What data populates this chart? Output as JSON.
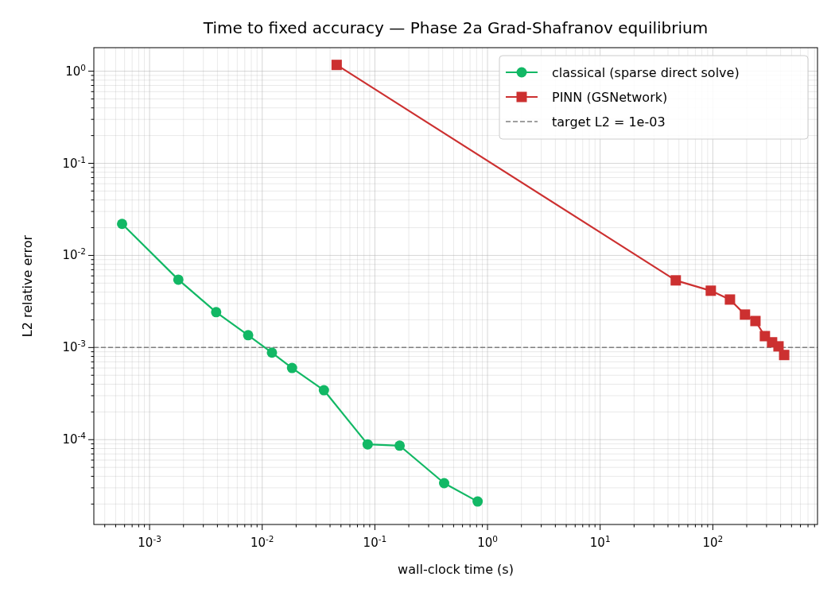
{
  "chart_data": {
    "type": "line",
    "title": "Time to fixed accuracy — Phase 2a Grad-Shafranov equilibrium",
    "xlabel": "wall-clock time (s)",
    "ylabel": "L2 relative error",
    "log": "xy",
    "grid": true,
    "legend": "top right",
    "xlim": [
      0.00032,
      850
    ],
    "ylim": [
      1.2e-05,
      1.8
    ],
    "xticks": [
      {
        "value": 0.0004,
        "label": null
      },
      {
        "value": 0.0005,
        "label": null
      },
      {
        "value": 0.0006,
        "label": null
      },
      {
        "value": 0.0007,
        "label": null
      },
      {
        "value": 0.0008,
        "label": null
      },
      {
        "value": 0.0009,
        "label": null
      },
      {
        "value": 0.001,
        "label": "10$^{-3}$"
      },
      {
        "value": 0.002,
        "label": null
      },
      {
        "value": 0.003,
        "label": null
      },
      {
        "value": 0.004,
        "label": null
      },
      {
        "value": 0.005,
        "label": null
      },
      {
        "value": 0.006,
        "label": null
      },
      {
        "value": 0.007,
        "label": null
      },
      {
        "value": 0.008,
        "label": null
      },
      {
        "value": 0.009,
        "label": null
      },
      {
        "value": 0.01,
        "label": "10$^{-2}$"
      },
      {
        "value": 0.02,
        "label": null
      },
      {
        "value": 0.03,
        "label": null
      },
      {
        "value": 0.04,
        "label": null
      },
      {
        "value": 0.05,
        "label": null
      },
      {
        "value": 0.06,
        "label": null
      },
      {
        "value": 0.07,
        "label": null
      },
      {
        "value": 0.08,
        "label": null
      },
      {
        "value": 0.09,
        "label": null
      },
      {
        "value": 0.1,
        "label": "10$^{-1}$"
      },
      {
        "value": 0.2,
        "label": null
      },
      {
        "value": 0.3,
        "label": null
      },
      {
        "value": 0.4,
        "label": null
      },
      {
        "value": 0.5,
        "label": null
      },
      {
        "value": 0.6,
        "label": null
      },
      {
        "value": 0.7,
        "label": null
      },
      {
        "value": 0.8,
        "label": null
      },
      {
        "value": 0.9,
        "label": null
      },
      {
        "value": 1,
        "label": "10$^{0}$"
      },
      {
        "value": 2,
        "label": null
      },
      {
        "value": 3,
        "label": null
      },
      {
        "value": 4,
        "label": null
      },
      {
        "value": 5,
        "label": null
      },
      {
        "value": 6,
        "label": null
      },
      {
        "value": 7,
        "label": null
      },
      {
        "value": 8,
        "label": null
      },
      {
        "value": 9,
        "label": null
      },
      {
        "value": 10,
        "label": "10$^{1}$"
      },
      {
        "value": 20,
        "label": null
      },
      {
        "value": 30,
        "label": null
      },
      {
        "value": 40,
        "label": null
      },
      {
        "value": 50,
        "label": null
      },
      {
        "value": 60,
        "label": null
      },
      {
        "value": 70,
        "label": null
      },
      {
        "value": 80,
        "label": null
      },
      {
        "value": 90,
        "label": null
      },
      {
        "value": 100,
        "label": "10$^{2}$"
      },
      {
        "value": 200,
        "label": null
      },
      {
        "value": 300,
        "label": null
      },
      {
        "value": 400,
        "label": null
      },
      {
        "value": 500,
        "label": null
      },
      {
        "value": 600,
        "label": null
      },
      {
        "value": 700,
        "label": null
      },
      {
        "value": 800,
        "label": null
      }
    ],
    "yticks": [
      {
        "value": 2e-05,
        "label": null
      },
      {
        "value": 3e-05,
        "label": null
      },
      {
        "value": 4e-05,
        "label": null
      },
      {
        "value": 5e-05,
        "label": null
      },
      {
        "value": 6e-05,
        "label": null
      },
      {
        "value": 7e-05,
        "label": null
      },
      {
        "value": 8e-05,
        "label": null
      },
      {
        "value": 9e-05,
        "label": null
      },
      {
        "value": 0.0001,
        "label": "10$^{-4}$"
      },
      {
        "value": 0.0002,
        "label": null
      },
      {
        "value": 0.0003,
        "label": null
      },
      {
        "value": 0.0004,
        "label": null
      },
      {
        "value": 0.0005,
        "label": null
      },
      {
        "value": 0.0006,
        "label": null
      },
      {
        "value": 0.0007,
        "label": null
      },
      {
        "value": 0.0008,
        "label": null
      },
      {
        "value": 0.0009,
        "label": null
      },
      {
        "value": 0.001,
        "label": "10$^{-3}$"
      },
      {
        "value": 0.002,
        "label": null
      },
      {
        "value": 0.003,
        "label": null
      },
      {
        "value": 0.004,
        "label": null
      },
      {
        "value": 0.005,
        "label": null
      },
      {
        "value": 0.006,
        "label": null
      },
      {
        "value": 0.007,
        "label": null
      },
      {
        "value": 0.008,
        "label": null
      },
      {
        "value": 0.009,
        "label": null
      },
      {
        "value": 0.01,
        "label": "10$^{-2}$"
      },
      {
        "value": 0.02,
        "label": null
      },
      {
        "value": 0.03,
        "label": null
      },
      {
        "value": 0.04,
        "label": null
      },
      {
        "value": 0.05,
        "label": null
      },
      {
        "value": 0.06,
        "label": null
      },
      {
        "value": 0.07,
        "label": null
      },
      {
        "value": 0.08,
        "label": null
      },
      {
        "value": 0.09,
        "label": null
      },
      {
        "value": 0.1,
        "label": "10$^{-1}$"
      },
      {
        "value": 0.2,
        "label": null
      },
      {
        "value": 0.3,
        "label": null
      },
      {
        "value": 0.4,
        "label": null
      },
      {
        "value": 0.5,
        "label": null
      },
      {
        "value": 0.6,
        "label": null
      },
      {
        "value": 0.7,
        "label": null
      },
      {
        "value": 0.8,
        "label": null
      },
      {
        "value": 0.9,
        "label": null
      },
      {
        "value": 1,
        "label": "10$^{0}$"
      }
    ],
    "series": [
      {
        "name": "classical (sparse direct solve)",
        "color": "#12b865",
        "marker": "circle",
        "x": [
          0.00057,
          0.0018,
          0.0039,
          0.0075,
          0.0122,
          0.0184,
          0.0353,
          0.0863,
          0.166,
          0.412,
          0.817
        ],
        "values": [
          0.022,
          0.00546,
          0.00242,
          0.00136,
          0.00088,
          0.0006,
          0.000344,
          8.9e-05,
          8.6e-05,
          3.37e-05,
          2.13e-05
        ]
      },
      {
        "name": "PINN (GSNetwork)",
        "color": "#cc3030",
        "marker": "square",
        "x": [
          0.0458,
          46.9,
          96,
          142,
          193,
          239,
          290,
          336,
          383,
          430
        ],
        "values": [
          1.17,
          0.00536,
          0.00414,
          0.00332,
          0.00228,
          0.00194,
          0.00133,
          0.00114,
          0.00103,
          0.00083
        ]
      }
    ],
    "ref_lines": [
      {
        "axis": "y",
        "value": 0.001,
        "label": "target L2 = 1e-03",
        "color": "#808080",
        "line_style": "dashed"
      }
    ]
  }
}
